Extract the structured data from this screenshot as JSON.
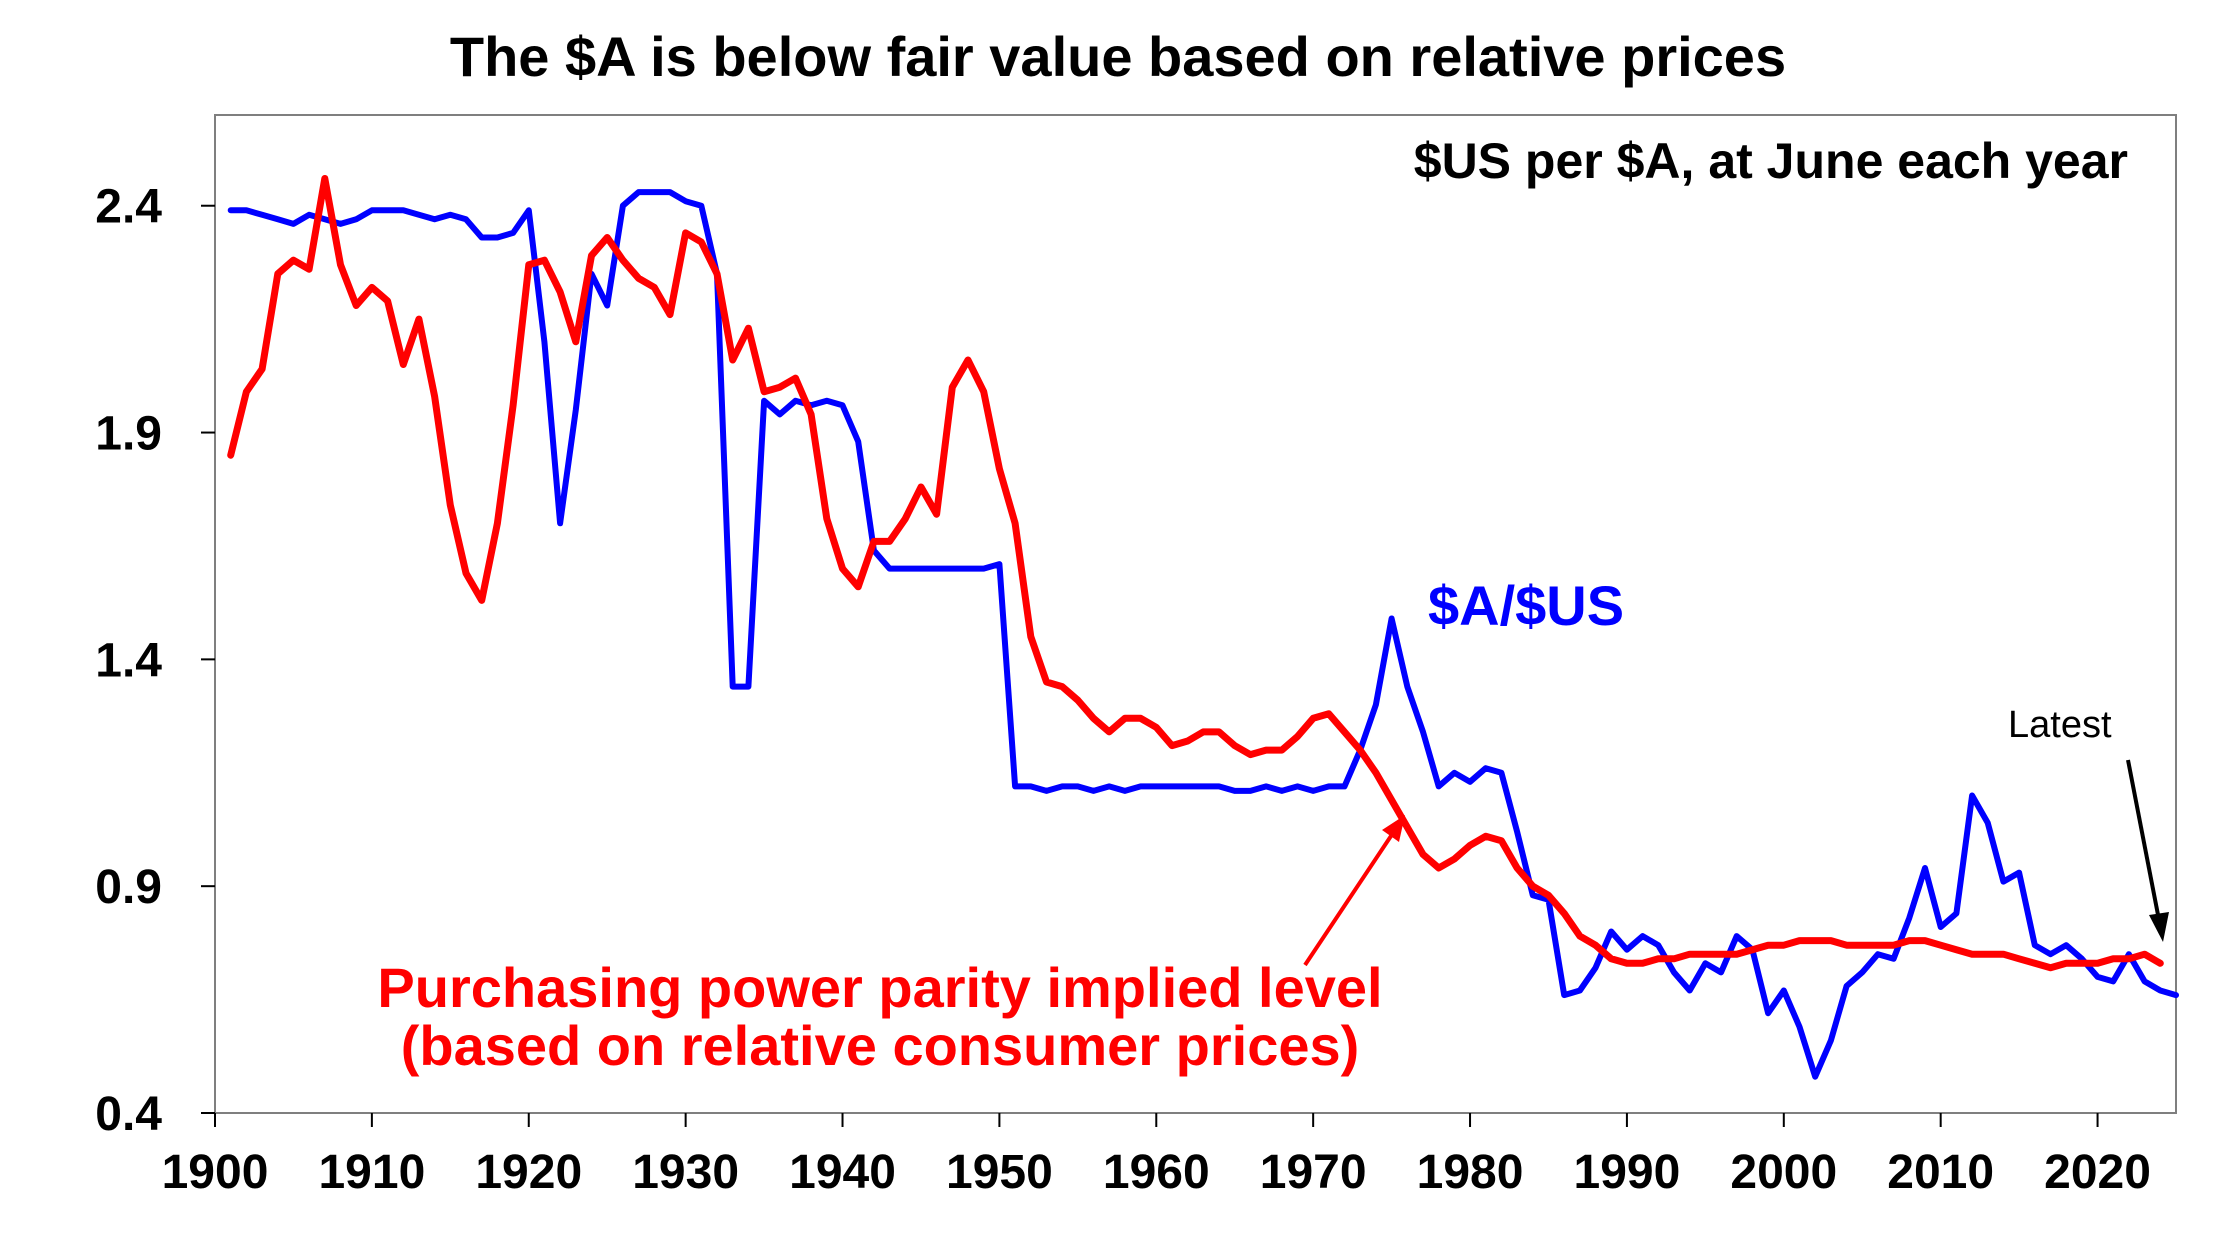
{
  "chart_data": {
    "type": "line",
    "title": "The $A is below fair value based on relative prices",
    "subtitle": "$US per $A, at June each year",
    "xlabel": "",
    "ylabel": "",
    "xlim": [
      1900,
      2025
    ],
    "ylim": [
      0.4,
      2.6
    ],
    "x_ticks": [
      "1900",
      "1910",
      "1920",
      "1930",
      "1940",
      "1950",
      "1960",
      "1970",
      "1980",
      "1990",
      "2000",
      "2010",
      "2020"
    ],
    "y_ticks": [
      "2.4",
      "1.9",
      "1.4",
      "0.9",
      "0.4"
    ],
    "grid": false,
    "legend": "none",
    "series": [
      {
        "name": "$A/$US",
        "color": "#0000ff",
        "points": [
          [
            1901,
            2.39
          ],
          [
            1902,
            2.39
          ],
          [
            1903,
            2.38
          ],
          [
            1904,
            2.37
          ],
          [
            1905,
            2.36
          ],
          [
            1906,
            2.38
          ],
          [
            1907,
            2.37
          ],
          [
            1908,
            2.36
          ],
          [
            1909,
            2.37
          ],
          [
            1910,
            2.39
          ],
          [
            1911,
            2.39
          ],
          [
            1912,
            2.39
          ],
          [
            1913,
            2.38
          ],
          [
            1914,
            2.37
          ],
          [
            1915,
            2.38
          ],
          [
            1916,
            2.37
          ],
          [
            1917,
            2.33
          ],
          [
            1918,
            2.33
          ],
          [
            1919,
            2.34
          ],
          [
            1920,
            2.39
          ],
          [
            1921,
            2.1
          ],
          [
            1922,
            1.7
          ],
          [
            1923,
            1.95
          ],
          [
            1924,
            2.25
          ],
          [
            1925,
            2.18
          ],
          [
            1926,
            2.4
          ],
          [
            1927,
            2.43
          ],
          [
            1928,
            2.43
          ],
          [
            1929,
            2.43
          ],
          [
            1930,
            2.41
          ],
          [
            1931,
            2.4
          ],
          [
            1932,
            2.25
          ],
          [
            1933,
            1.34
          ],
          [
            1934,
            1.34
          ],
          [
            1935,
            1.97
          ],
          [
            1936,
            1.94
          ],
          [
            1937,
            1.97
          ],
          [
            1938,
            1.96
          ],
          [
            1939,
            1.97
          ],
          [
            1940,
            1.96
          ],
          [
            1941,
            1.88
          ],
          [
            1942,
            1.64
          ],
          [
            1943,
            1.6
          ],
          [
            1944,
            1.6
          ],
          [
            1945,
            1.6
          ],
          [
            1946,
            1.6
          ],
          [
            1947,
            1.6
          ],
          [
            1948,
            1.6
          ],
          [
            1949,
            1.6
          ],
          [
            1950,
            1.61
          ],
          [
            1951,
            1.12
          ],
          [
            1952,
            1.12
          ],
          [
            1953,
            1.11
          ],
          [
            1954,
            1.12
          ],
          [
            1955,
            1.12
          ],
          [
            1956,
            1.11
          ],
          [
            1957,
            1.12
          ],
          [
            1958,
            1.11
          ],
          [
            1959,
            1.12
          ],
          [
            1960,
            1.12
          ],
          [
            1961,
            1.12
          ],
          [
            1962,
            1.12
          ],
          [
            1963,
            1.12
          ],
          [
            1964,
            1.12
          ],
          [
            1965,
            1.11
          ],
          [
            1966,
            1.11
          ],
          [
            1967,
            1.12
          ],
          [
            1968,
            1.11
          ],
          [
            1969,
            1.12
          ],
          [
            1970,
            1.11
          ],
          [
            1971,
            1.12
          ],
          [
            1972,
            1.12
          ],
          [
            1973,
            1.2
          ],
          [
            1974,
            1.3
          ],
          [
            1975,
            1.49
          ],
          [
            1976,
            1.34
          ],
          [
            1977,
            1.24
          ],
          [
            1978,
            1.12
          ],
          [
            1979,
            1.15
          ],
          [
            1980,
            1.13
          ],
          [
            1981,
            1.16
          ],
          [
            1982,
            1.15
          ],
          [
            1983,
            1.02
          ],
          [
            1984,
            0.88
          ],
          [
            1985,
            0.87
          ],
          [
            1986,
            0.66
          ],
          [
            1987,
            0.67
          ],
          [
            1988,
            0.72
          ],
          [
            1989,
            0.8
          ],
          [
            1990,
            0.76
          ],
          [
            1991,
            0.79
          ],
          [
            1992,
            0.77
          ],
          [
            1993,
            0.71
          ],
          [
            1994,
            0.67
          ],
          [
            1995,
            0.73
          ],
          [
            1996,
            0.71
          ],
          [
            1997,
            0.79
          ],
          [
            1998,
            0.76
          ],
          [
            1999,
            0.62
          ],
          [
            2000,
            0.67
          ],
          [
            2001,
            0.59
          ],
          [
            2002,
            0.48
          ],
          [
            2003,
            0.56
          ],
          [
            2004,
            0.68
          ],
          [
            2005,
            0.71
          ],
          [
            2006,
            0.75
          ],
          [
            2007,
            0.74
          ],
          [
            2008,
            0.83
          ],
          [
            2009,
            0.94
          ],
          [
            2010,
            0.81
          ],
          [
            2011,
            0.84
          ],
          [
            2012,
            1.1
          ],
          [
            2013,
            1.04
          ],
          [
            2014,
            0.91
          ],
          [
            2015,
            0.93
          ],
          [
            2016,
            0.77
          ],
          [
            2017,
            0.75
          ],
          [
            2018,
            0.77
          ],
          [
            2019,
            0.74
          ],
          [
            2020,
            0.7
          ],
          [
            2021,
            0.69
          ],
          [
            2022,
            0.75
          ],
          [
            2023,
            0.69
          ],
          [
            2024,
            0.67
          ],
          [
            2025,
            0.66
          ]
        ]
      },
      {
        "name": "Purchasing power parity implied level (based on relative consumer prices)",
        "color": "#ff0000",
        "points": [
          [
            1901,
            1.85
          ],
          [
            1902,
            1.99
          ],
          [
            1903,
            2.04
          ],
          [
            1904,
            2.25
          ],
          [
            1905,
            2.28
          ],
          [
            1906,
            2.26
          ],
          [
            1907,
            2.46
          ],
          [
            1908,
            2.27
          ],
          [
            1909,
            2.18
          ],
          [
            1910,
            2.22
          ],
          [
            1911,
            2.19
          ],
          [
            1912,
            2.05
          ],
          [
            1913,
            2.15
          ],
          [
            1914,
            1.98
          ],
          [
            1915,
            1.74
          ],
          [
            1916,
            1.59
          ],
          [
            1917,
            1.53
          ],
          [
            1918,
            1.7
          ],
          [
            1919,
            1.96
          ],
          [
            1920,
            2.27
          ],
          [
            1921,
            2.28
          ],
          [
            1922,
            2.21
          ],
          [
            1923,
            2.1
          ],
          [
            1924,
            2.29
          ],
          [
            1925,
            2.33
          ],
          [
            1926,
            2.28
          ],
          [
            1927,
            2.24
          ],
          [
            1928,
            2.22
          ],
          [
            1929,
            2.16
          ],
          [
            1930,
            2.34
          ],
          [
            1931,
            2.32
          ],
          [
            1932,
            2.25
          ],
          [
            1933,
            2.06
          ],
          [
            1934,
            2.13
          ],
          [
            1935,
            1.99
          ],
          [
            1936,
            2.0
          ],
          [
            1937,
            2.02
          ],
          [
            1938,
            1.94
          ],
          [
            1939,
            1.71
          ],
          [
            1940,
            1.6
          ],
          [
            1941,
            1.56
          ],
          [
            1942,
            1.66
          ],
          [
            1943,
            1.66
          ],
          [
            1944,
            1.71
          ],
          [
            1945,
            1.78
          ],
          [
            1946,
            1.72
          ],
          [
            1947,
            2.0
          ],
          [
            1948,
            2.06
          ],
          [
            1949,
            1.99
          ],
          [
            1950,
            1.82
          ],
          [
            1951,
            1.7
          ],
          [
            1952,
            1.45
          ],
          [
            1953,
            1.35
          ],
          [
            1954,
            1.34
          ],
          [
            1955,
            1.31
          ],
          [
            1956,
            1.27
          ],
          [
            1957,
            1.24
          ],
          [
            1958,
            1.27
          ],
          [
            1959,
            1.27
          ],
          [
            1960,
            1.25
          ],
          [
            1961,
            1.21
          ],
          [
            1962,
            1.22
          ],
          [
            1963,
            1.24
          ],
          [
            1964,
            1.24
          ],
          [
            1965,
            1.21
          ],
          [
            1966,
            1.19
          ],
          [
            1967,
            1.2
          ],
          [
            1968,
            1.2
          ],
          [
            1969,
            1.23
          ],
          [
            1970,
            1.27
          ],
          [
            1971,
            1.28
          ],
          [
            1972,
            1.24
          ],
          [
            1973,
            1.2
          ],
          [
            1974,
            1.15
          ],
          [
            1975,
            1.09
          ],
          [
            1976,
            1.03
          ],
          [
            1977,
            0.97
          ],
          [
            1978,
            0.94
          ],
          [
            1979,
            0.96
          ],
          [
            1980,
            0.99
          ],
          [
            1981,
            1.01
          ],
          [
            1982,
            1.0
          ],
          [
            1983,
            0.94
          ],
          [
            1984,
            0.9
          ],
          [
            1985,
            0.88
          ],
          [
            1986,
            0.84
          ],
          [
            1987,
            0.79
          ],
          [
            1988,
            0.77
          ],
          [
            1989,
            0.74
          ],
          [
            1990,
            0.73
          ],
          [
            1991,
            0.73
          ],
          [
            1992,
            0.74
          ],
          [
            1993,
            0.74
          ],
          [
            1994,
            0.75
          ],
          [
            1995,
            0.75
          ],
          [
            1996,
            0.75
          ],
          [
            1997,
            0.75
          ],
          [
            1998,
            0.76
          ],
          [
            1999,
            0.77
          ],
          [
            2000,
            0.77
          ],
          [
            2001,
            0.78
          ],
          [
            2002,
            0.78
          ],
          [
            2003,
            0.78
          ],
          [
            2004,
            0.77
          ],
          [
            2005,
            0.77
          ],
          [
            2006,
            0.77
          ],
          [
            2007,
            0.77
          ],
          [
            2008,
            0.78
          ],
          [
            2009,
            0.78
          ],
          [
            2010,
            0.77
          ],
          [
            2011,
            0.76
          ],
          [
            2012,
            0.75
          ],
          [
            2013,
            0.75
          ],
          [
            2014,
            0.75
          ],
          [
            2015,
            0.74
          ],
          [
            2016,
            0.73
          ],
          [
            2017,
            0.72
          ],
          [
            2018,
            0.73
          ],
          [
            2019,
            0.73
          ],
          [
            2020,
            0.73
          ],
          [
            2021,
            0.74
          ],
          [
            2022,
            0.74
          ],
          [
            2023,
            0.75
          ],
          [
            2024,
            0.73
          ]
        ]
      }
    ],
    "annotations": {
      "aud_label": "$A/$US",
      "ppp_label_line1": "Purchasing power parity implied level",
      "ppp_label_line2": "(based on relative consumer prices)",
      "latest_label": "Latest",
      "ppp_arrow_color": "#ff0000",
      "latest_arrow_color": "#000000"
    }
  }
}
